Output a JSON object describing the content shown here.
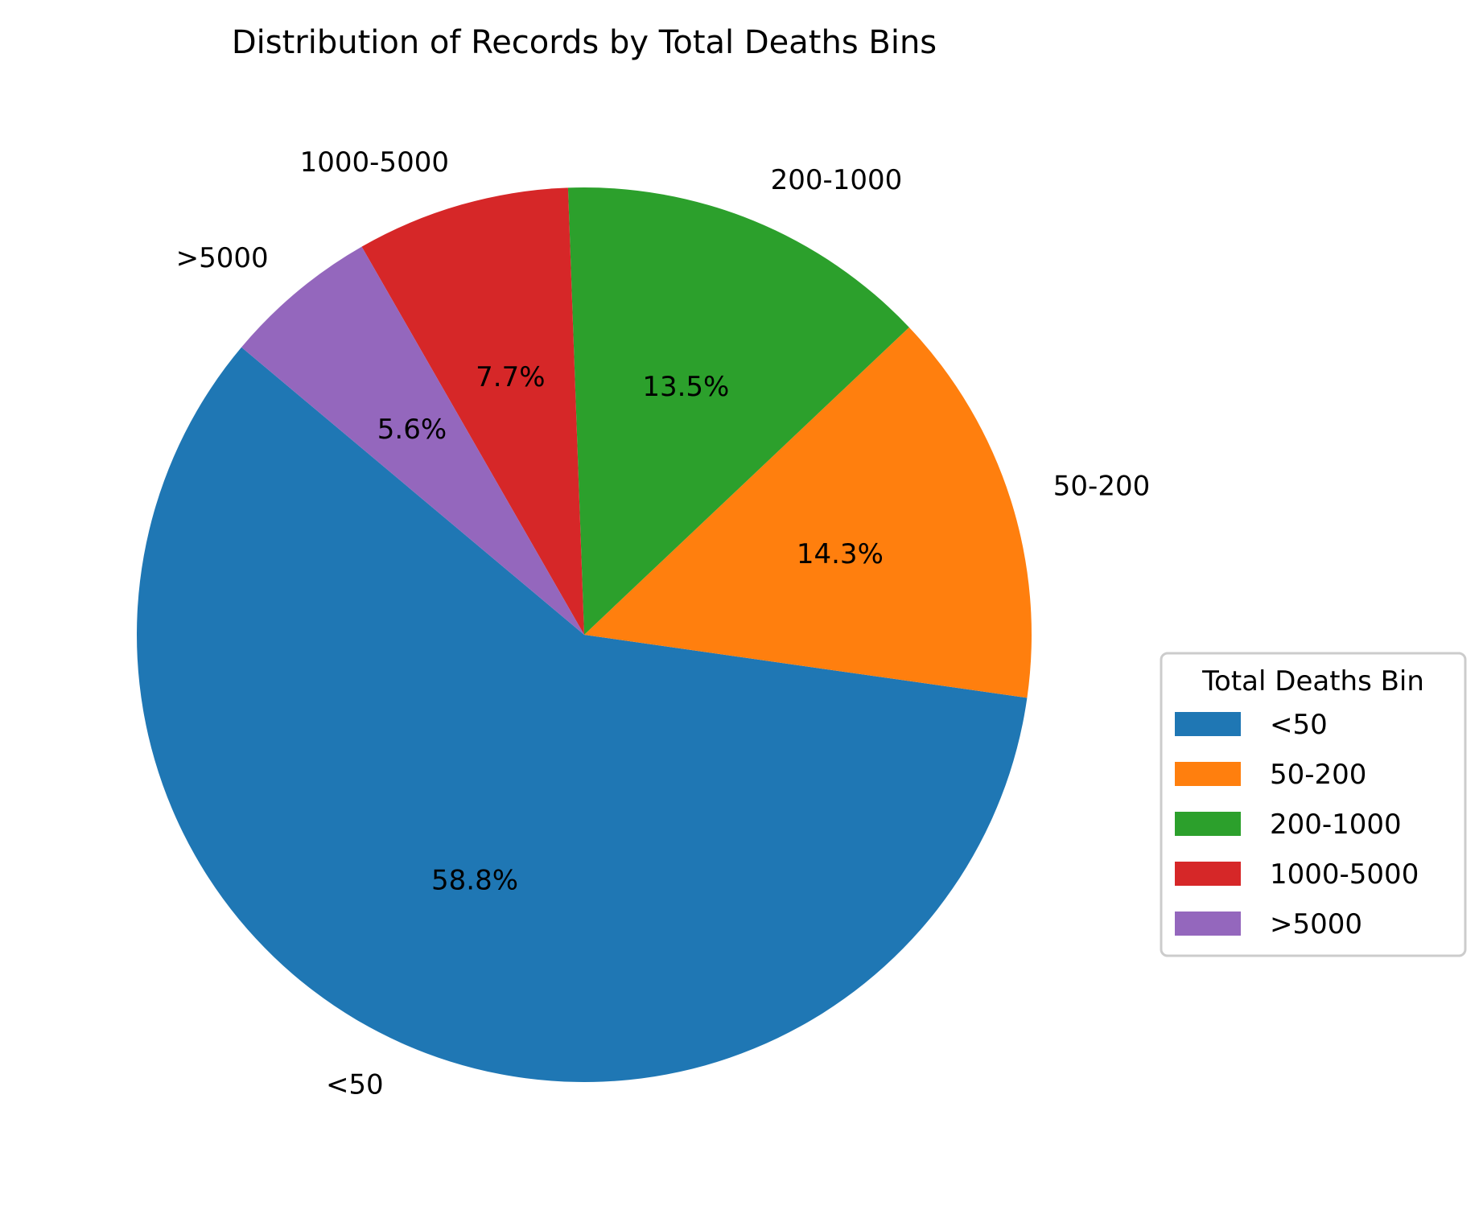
{
  "chart_data": {
    "type": "pie",
    "title": "Distribution of Records by Total Deaths Bins",
    "categories": [
      "<50",
      "50-200",
      "200-1000",
      "1000-5000",
      ">5000"
    ],
    "values": [
      58.8,
      14.3,
      13.5,
      7.7,
      5.6
    ],
    "percent_labels": [
      "58.8%",
      "14.3%",
      "13.5%",
      "7.7%",
      "5.6%"
    ],
    "colors": [
      "#1f77b4",
      "#ff7f0e",
      "#2ca02c",
      "#d62728",
      "#9467bd"
    ],
    "start_angle_deg": 140,
    "direction": "counterclockwise",
    "legend": {
      "title": "Total Deaths Bin",
      "placement": "center-right",
      "entries": [
        "<50",
        "50-200",
        "200-1000",
        "1000-5000",
        ">5000"
      ]
    }
  }
}
